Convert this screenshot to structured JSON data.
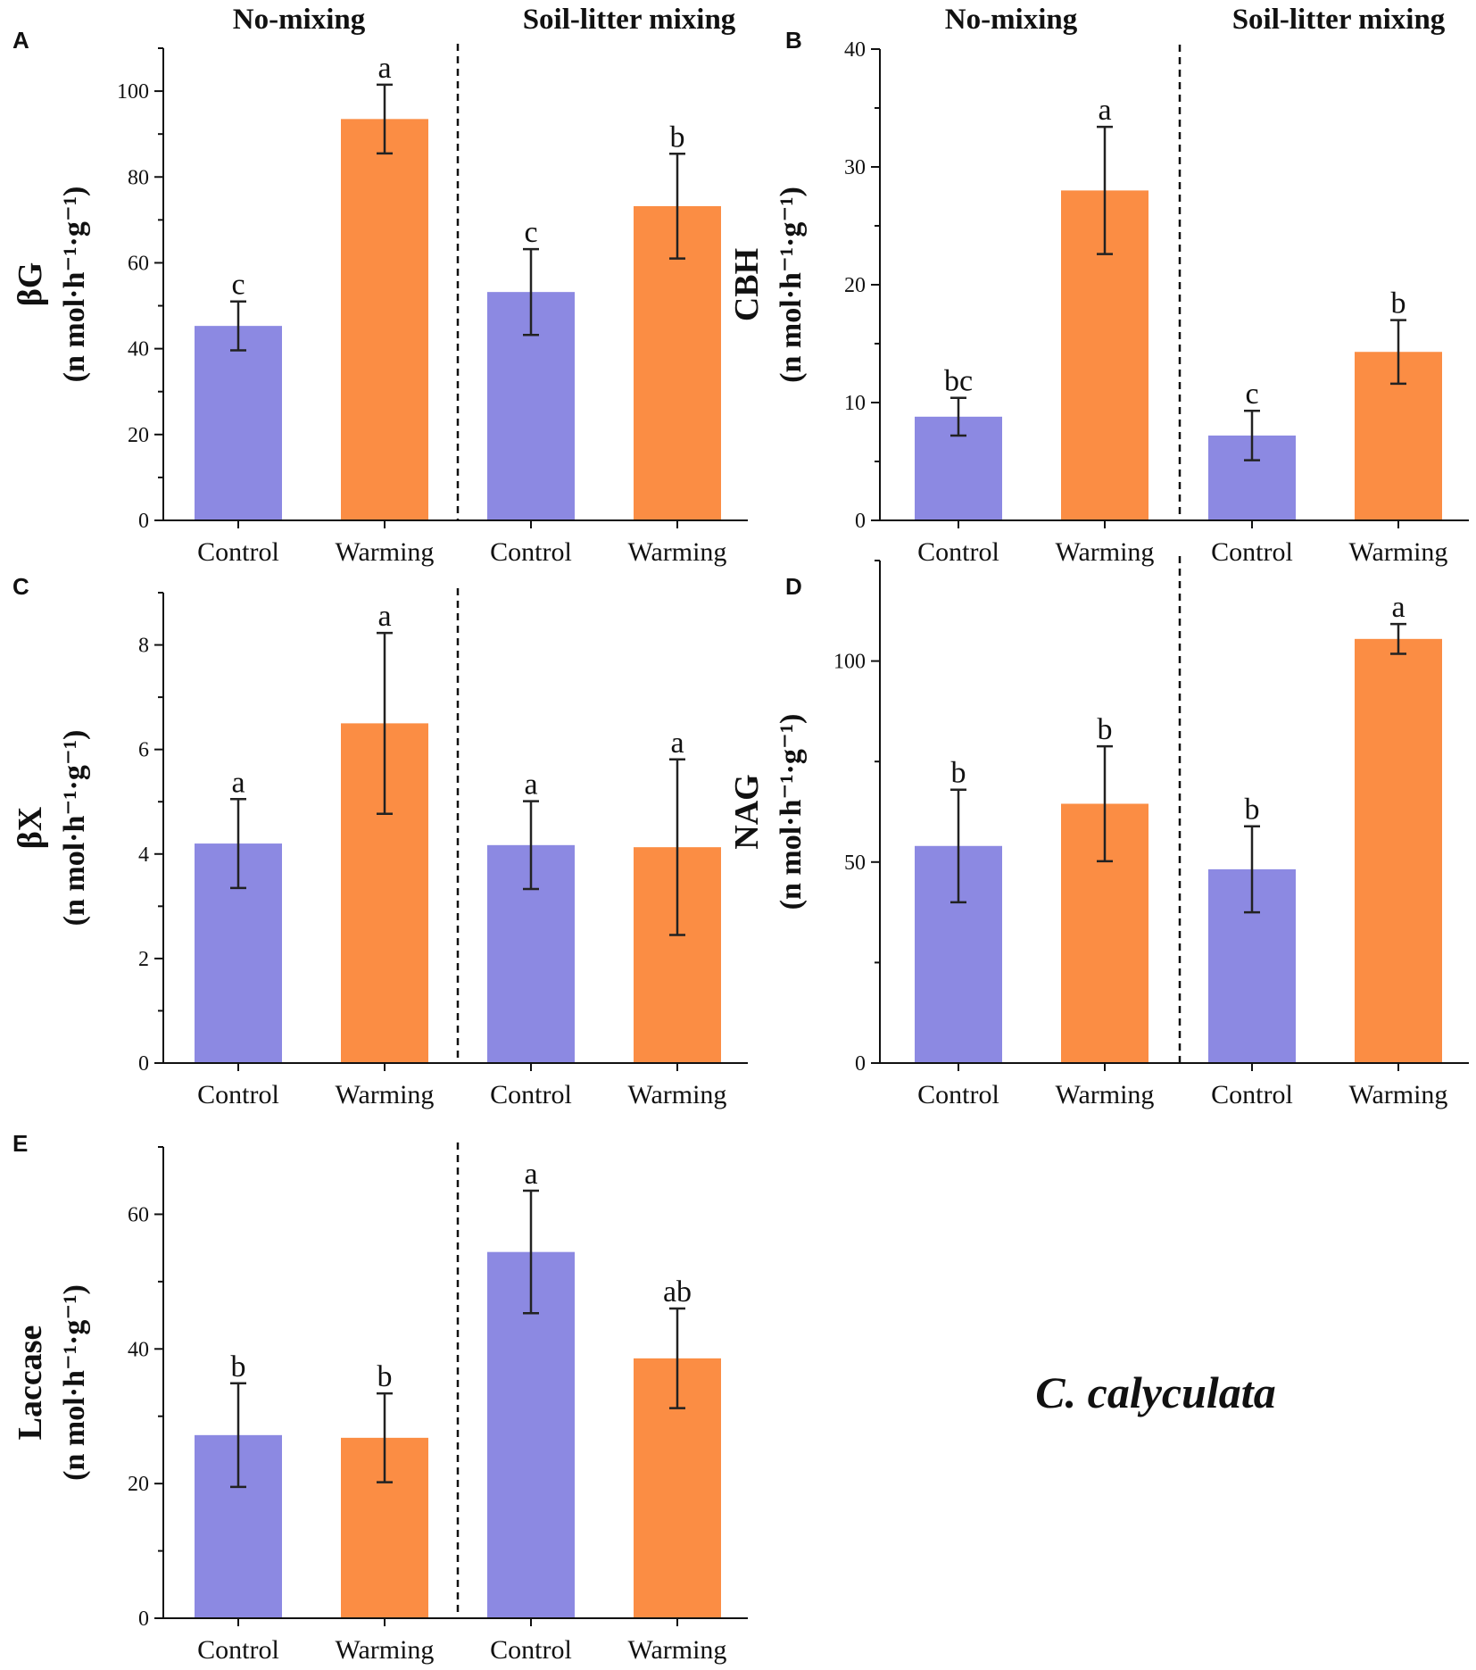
{
  "figure": {
    "species_label": "C. calyculata",
    "group_labels": [
      "No-mixing",
      "Soil-litter mixing"
    ],
    "bar_colors": {
      "Control": "#8c89e2",
      "Warming": "#fb8d44"
    },
    "error_bar_color": "#222222"
  },
  "chart_data": [
    {
      "panel": "A",
      "type": "bar",
      "ylabel_main": "βG",
      "ylabel_unit": "(n mol·h⁻¹·g⁻¹)",
      "ylim": [
        0,
        110
      ],
      "yticks": [
        0,
        20,
        40,
        60,
        80,
        100
      ],
      "minor_ticks": true,
      "groups": [
        "No-mixing",
        "Soil-litter mixing"
      ],
      "categories": [
        "Control",
        "Warming",
        "Control",
        "Warming"
      ],
      "bar_group": [
        "Control",
        "Warming",
        "Control",
        "Warming"
      ],
      "values": [
        45.3,
        93.5,
        53.2,
        73.2
      ],
      "errors": [
        5.7,
        8.0,
        10.0,
        12.2
      ],
      "letters": [
        "c",
        "a",
        "c",
        "b"
      ]
    },
    {
      "panel": "B",
      "type": "bar",
      "ylabel_main": "CBH",
      "ylabel_unit": "(n mol·h⁻¹·g⁻¹)",
      "ylim": [
        0,
        40
      ],
      "yticks": [
        0,
        10,
        20,
        30,
        40
      ],
      "minor_ticks": true,
      "groups": [
        "No-mixing",
        "Soil-litter mixing"
      ],
      "categories": [
        "Control",
        "Warming",
        "Control",
        "Warming"
      ],
      "bar_group": [
        "Control",
        "Warming",
        "Control",
        "Warming"
      ],
      "values": [
        8.8,
        28.0,
        7.2,
        14.3
      ],
      "errors": [
        1.6,
        5.4,
        2.1,
        2.7
      ],
      "letters": [
        "bc",
        "a",
        "c",
        "b"
      ]
    },
    {
      "panel": "C",
      "type": "bar",
      "ylabel_main": "βX",
      "ylabel_unit": "(n mol·h⁻¹·g⁻¹)",
      "ylim": [
        0,
        9
      ],
      "yticks": [
        0,
        2,
        4,
        6,
        8
      ],
      "minor_ticks": true,
      "groups": [
        "No-mixing",
        "Soil-litter mixing"
      ],
      "categories": [
        "Control",
        "Warming",
        "Control",
        "Warming"
      ],
      "bar_group": [
        "Control",
        "Warming",
        "Control",
        "Warming"
      ],
      "values": [
        4.2,
        6.5,
        4.17,
        4.13
      ],
      "errors": [
        0.85,
        1.73,
        0.84,
        1.68
      ],
      "letters": [
        "a",
        "a",
        "a",
        "a"
      ]
    },
    {
      "panel": "D",
      "type": "bar",
      "ylabel_main": "NAG",
      "ylabel_unit": "(n mol·h⁻¹·g⁻¹)",
      "ylim": [
        0,
        125
      ],
      "yticks": [
        0,
        50,
        100
      ],
      "minor_ticks": true,
      "groups": [
        "No-mixing",
        "Soil-litter mixing"
      ],
      "categories": [
        "Control",
        "Warming",
        "Control",
        "Warming"
      ],
      "bar_group": [
        "Control",
        "Warming",
        "Control",
        "Warming"
      ],
      "values": [
        54.0,
        64.5,
        48.2,
        105.5
      ],
      "errors": [
        14.0,
        14.3,
        10.7,
        3.7
      ],
      "letters": [
        "b",
        "b",
        "b",
        "a"
      ]
    },
    {
      "panel": "E",
      "type": "bar",
      "ylabel_main": "Laccase",
      "ylabel_unit": "(n mol·h⁻¹·g⁻¹)",
      "ylim": [
        0,
        70
      ],
      "yticks": [
        0,
        20,
        40,
        60
      ],
      "minor_ticks": true,
      "groups": [
        "No-mixing",
        "Soil-litter mixing"
      ],
      "categories": [
        "Control",
        "Warming",
        "Control",
        "Warming"
      ],
      "bar_group": [
        "Control",
        "Warming",
        "Control",
        "Warming"
      ],
      "values": [
        27.2,
        26.8,
        54.4,
        38.6
      ],
      "errors": [
        7.7,
        6.6,
        9.1,
        7.4
      ],
      "letters": [
        "b",
        "b",
        "a",
        "ab"
      ]
    }
  ]
}
